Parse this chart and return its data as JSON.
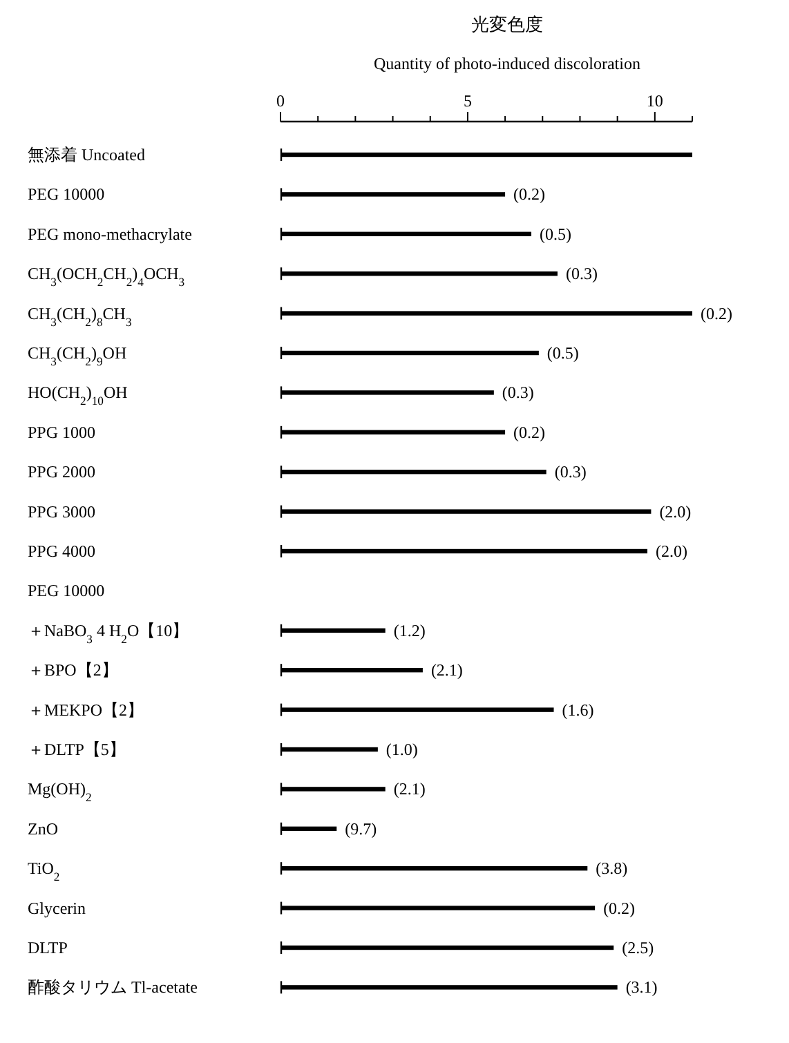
{
  "chart_data": {
    "type": "bar",
    "orientation": "horizontal",
    "title": "光変色度",
    "xlabel": "Quantity of photo-induced discoloration",
    "categories": [
      "無添着 Uncoated",
      "PEG 10000",
      "PEG mono-methacrylate",
      "CH$_{3}$(OCH$_{2}$CH$_{2}$)$_{4}$OCH$_{3}$",
      "CH$_{3}$(CH$_{2}$)$_{8}$CH$_{3}$",
      "CH$_{3}$(CH$_{2}$)$_{9}$OH",
      "HO(CH$_{2}$)$_{10}$OH",
      "PPG 1000",
      "PPG 2000",
      "PPG 3000",
      "PPG 4000",
      "PEG 10000",
      "＋NaBO$_{3}$ 4 H$_{2}$O【10】",
      "＋BPO【2】",
      "＋MEKPO【2】",
      "＋DLTP【5】",
      "Mg(OH)$_{2}$",
      "ZnO",
      "TiO$_{2}$",
      "Glycerin",
      "DLTP",
      "酢酸タリウム Tl-acetate"
    ],
    "values": [
      11.0,
      6.0,
      6.7,
      7.4,
      11.0,
      6.9,
      5.7,
      6.0,
      7.1,
      9.9,
      9.8,
      null,
      2.8,
      3.8,
      7.3,
      2.6,
      2.8,
      1.5,
      8.2,
      8.4,
      8.9,
      9.0
    ],
    "annotations": [
      {
        "text": "(0.2)",
        "x": 6.0,
        "y": "PEG 10000"
      },
      {
        "text": "(0.5)",
        "x": 6.7,
        "y": "PEG mono-methacrylate"
      },
      {
        "text": "(0.3)",
        "x": 7.4,
        "y": "CH$_{3}$(OCH$_{2}$CH$_{2}$)$_{4}$OCH$_{3}$"
      },
      {
        "text": "(0.2)",
        "x": 11.0,
        "y": "CH$_{3}$(CH$_{2}$)$_{8}$CH$_{3}$"
      },
      {
        "text": "(0.5)",
        "x": 6.9,
        "y": "CH$_{3}$(CH$_{2}$)$_{9}$OH"
      },
      {
        "text": "(0.3)",
        "x": 5.7,
        "y": "HO(CH$_{2}$)$_{10}$OH"
      },
      {
        "text": "(0.2)",
        "x": 6.0,
        "y": "PPG 1000"
      },
      {
        "text": "(0.3)",
        "x": 7.1,
        "y": "PPG 2000"
      },
      {
        "text": "(2.0)",
        "x": 9.9,
        "y": "PPG 3000"
      },
      {
        "text": "(2.0)",
        "x": 9.8,
        "y": "PPG 4000"
      },
      {
        "text": "(1.2)",
        "x": 2.8,
        "y": "＋NaBO$_{3}$ 4 H$_{2}$O【10】"
      },
      {
        "text": "(2.1)",
        "x": 3.8,
        "y": "＋BPO【2】"
      },
      {
        "text": "(1.6)",
        "x": 7.3,
        "y": "＋MEKPO【2】"
      },
      {
        "text": "(1.0)",
        "x": 2.6,
        "y": "＋DLTP【5】"
      },
      {
        "text": "(2.1)",
        "x": 2.8,
        "y": "Mg(OH)$_{2}$"
      },
      {
        "text": "(9.7)",
        "x": 1.5,
        "y": "ZnO"
      },
      {
        "text": "(3.8)",
        "x": 8.2,
        "y": "TiO$_{2}$"
      },
      {
        "text": "(0.2)",
        "x": 8.4,
        "y": "Glycerin"
      },
      {
        "text": "(2.5)",
        "x": 8.9,
        "y": "DLTP"
      },
      {
        "text": "(3.1)",
        "x": 9.0,
        "y": "酢酸タリウム Tl-acetate"
      }
    ],
    "color": "#000000",
    "xlim": [
      0,
      11
    ],
    "xticks": [
      0,
      {
        "value": 1,
        "label": null
      },
      {
        "value": 2,
        "label": null
      },
      {
        "value": 3,
        "label": null
      },
      {
        "value": 4,
        "label": null
      },
      5,
      {
        "value": 6,
        "label": null
      },
      {
        "value": 7,
        "label": null
      },
      {
        "value": 8,
        "label": null
      },
      {
        "value": 9,
        "label": null
      },
      10,
      {
        "value": 11,
        "label": null
      }
    ],
    "grid": false
  }
}
